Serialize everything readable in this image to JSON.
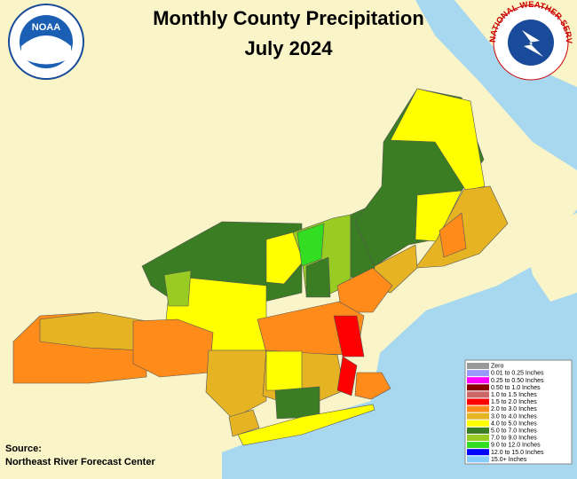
{
  "header": {
    "title": "Monthly County Precipitation",
    "subtitle": "July 2024"
  },
  "logos": {
    "noaa": "NOAA",
    "nws": "NATIONAL WEATHER SERVICE"
  },
  "legend": {
    "items": [
      {
        "label": "Zero",
        "color": "#999999"
      },
      {
        "label": "0.01 to 0.25 Inches",
        "color": "#9999ff"
      },
      {
        "label": "0.25 to 0.50 Inches",
        "color": "#ff00ff"
      },
      {
        "label": "0.50 to 1.0 Inches",
        "color": "#880000"
      },
      {
        "label": "1.0 to 1.5 Inches",
        "color": "#cc6666"
      },
      {
        "label": "1.5 to 2.0 Inches",
        "color": "#ff0000"
      },
      {
        "label": "2.0 to 3.0 Inches",
        "color": "#ff8c1a"
      },
      {
        "label": "3.0 to 4.0 Inches",
        "color": "#e6b422"
      },
      {
        "label": "4.0 to 5.0 Inches",
        "color": "#ffff00"
      },
      {
        "label": "5.0 to 7.0 Inches",
        "color": "#3a7d22"
      },
      {
        "label": "7.0 to 9.0 Inches",
        "color": "#99cc22"
      },
      {
        "label": "9.0 to 12.0 Inches",
        "color": "#33dd22"
      },
      {
        "label": "12.0 to 15.0 Inches",
        "color": "#0000ff"
      },
      {
        "label": "15.0+ Inches",
        "color": "#88ccff"
      }
    ]
  },
  "source": {
    "label": "Source:",
    "text": "Northeast River Forecast Center"
  }
}
